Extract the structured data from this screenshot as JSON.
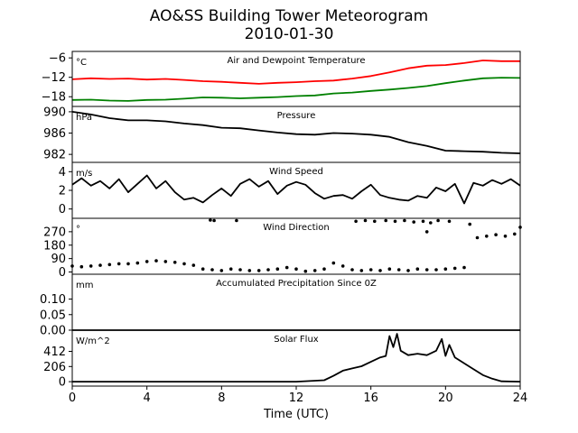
{
  "figure": {
    "title_line1": "AO&SS Building Tower Meteorogram",
    "title_line2": "2010-01-30",
    "xlabel": "Time (UTC)",
    "x_ticks": [
      0,
      4,
      8,
      12,
      16,
      20,
      24
    ],
    "x_range": [
      0,
      24
    ]
  },
  "chart_data": [
    {
      "type": "line",
      "title": "Air and Dewpoint Temperature",
      "unit": "°C",
      "ylim": [
        -21,
        -4
      ],
      "yticks": [
        {
          "v": -6,
          "label": "−6"
        },
        {
          "v": -12,
          "label": "−12"
        },
        {
          "v": -18,
          "label": "−18"
        }
      ],
      "series": [
        {
          "color": "#ff0000",
          "x": [
            0,
            1,
            2,
            3,
            4,
            5,
            6,
            7,
            8,
            9,
            10,
            11,
            12,
            13,
            14,
            15,
            16,
            17,
            18,
            19,
            20,
            21,
            22,
            23,
            24
          ],
          "values": [
            -12.6,
            -12.3,
            -12.5,
            -12.4,
            -12.7,
            -12.5,
            -12.8,
            -13.2,
            -13.4,
            -13.7,
            -14.0,
            -13.7,
            -13.5,
            -13.2,
            -13.0,
            -12.4,
            -11.6,
            -10.5,
            -9.2,
            -8.4,
            -8.2,
            -7.6,
            -6.8,
            -7.0,
            -7.0
          ]
        },
        {
          "color": "#008000",
          "x": [
            0,
            1,
            2,
            3,
            4,
            5,
            6,
            7,
            8,
            9,
            10,
            11,
            12,
            13,
            14,
            15,
            16,
            17,
            18,
            19,
            20,
            21,
            22,
            23,
            24
          ],
          "values": [
            -19.0,
            -18.9,
            -19.2,
            -19.3,
            -19.0,
            -18.9,
            -18.6,
            -18.2,
            -18.3,
            -18.5,
            -18.3,
            -18.1,
            -17.8,
            -17.6,
            -17.0,
            -16.7,
            -16.2,
            -15.8,
            -15.3,
            -14.7,
            -13.8,
            -13.0,
            -12.3,
            -12.1,
            -12.2
          ]
        }
      ]
    },
    {
      "type": "line",
      "title": "Pressure",
      "unit": "hPa",
      "ylim": [
        980.5,
        991
      ],
      "yticks": [
        {
          "v": 990,
          "label": "990"
        },
        {
          "v": 986,
          "label": "986"
        },
        {
          "v": 982,
          "label": "982"
        }
      ],
      "series": [
        {
          "color": "#000000",
          "x": [
            0,
            1,
            2,
            3,
            4,
            5,
            6,
            7,
            8,
            9,
            10,
            11,
            12,
            13,
            14,
            15,
            16,
            17,
            18,
            19,
            20,
            21,
            22,
            23,
            24
          ],
          "values": [
            990.0,
            989.5,
            988.8,
            988.4,
            988.4,
            988.2,
            987.8,
            987.5,
            987.0,
            986.9,
            986.5,
            986.1,
            985.8,
            985.7,
            986.0,
            985.9,
            985.7,
            985.3,
            984.3,
            983.6,
            982.7,
            982.6,
            982.5,
            982.3,
            982.2
          ]
        }
      ]
    },
    {
      "type": "line",
      "title": "Wind Speed",
      "unit": "m/s",
      "ylim": [
        -1,
        5
      ],
      "yticks": [
        {
          "v": 4,
          "label": "4"
        },
        {
          "v": 2,
          "label": "2"
        },
        {
          "v": 0,
          "label": "0"
        }
      ],
      "series": [
        {
          "color": "#000000",
          "x": [
            0,
            0.5,
            1,
            1.5,
            2,
            2.5,
            3,
            3.5,
            4,
            4.5,
            5,
            5.5,
            6,
            6.5,
            7,
            7.5,
            8,
            8.5,
            9,
            9.5,
            10,
            10.5,
            11,
            11.5,
            12,
            12.5,
            13,
            13.5,
            14,
            14.5,
            15,
            15.5,
            16,
            16.5,
            17,
            17.5,
            18,
            18.5,
            19,
            19.5,
            20,
            20.5,
            21,
            21.5,
            22,
            22.5,
            23,
            23.5,
            24
          ],
          "values": [
            2.6,
            3.3,
            2.5,
            3.0,
            2.2,
            3.2,
            1.8,
            2.7,
            3.6,
            2.2,
            3.0,
            1.8,
            1.0,
            1.2,
            0.7,
            1.5,
            2.2,
            1.4,
            2.7,
            3.2,
            2.4,
            3.0,
            1.6,
            2.5,
            2.9,
            2.6,
            1.7,
            1.1,
            1.4,
            1.5,
            1.1,
            1.9,
            2.6,
            1.5,
            1.2,
            1.0,
            0.9,
            1.4,
            1.2,
            2.3,
            1.9,
            2.7,
            0.6,
            2.8,
            2.5,
            3.1,
            2.7,
            3.2,
            2.5
          ]
        }
      ]
    },
    {
      "type": "scatter",
      "title": "Wind Direction",
      "unit": "°",
      "ylim": [
        -15,
        360
      ],
      "yticks": [
        {
          "v": 270,
          "label": "270"
        },
        {
          "v": 180,
          "label": "180"
        },
        {
          "v": 90,
          "label": "90"
        },
        {
          "v": 0,
          "label": "0"
        }
      ],
      "series": [
        {
          "color": "#000000",
          "x": [
            0,
            0.5,
            1,
            1.5,
            2,
            2.5,
            3,
            3.5,
            4,
            4.5,
            5,
            5.5,
            6,
            6.5,
            7,
            7.5,
            7.4,
            7.6,
            8,
            8.5,
            8.8,
            9,
            9.5,
            10,
            10.5,
            11,
            11.5,
            12,
            12.5,
            13,
            13.5,
            14,
            14.5,
            15,
            15.5,
            16,
            16.5,
            17,
            17.5,
            18,
            18.5,
            19,
            19.5,
            20,
            20.5,
            21,
            15.2,
            15.7,
            16.2,
            16.8,
            17.3,
            17.8,
            18.3,
            18.8,
            19.2,
            19.6,
            20.2,
            19.0,
            21.3,
            21.7,
            22.2,
            22.7,
            23.2,
            23.7,
            24
          ],
          "values": [
            40,
            35,
            40,
            45,
            50,
            55,
            55,
            60,
            70,
            75,
            70,
            65,
            55,
            45,
            20,
            15,
            348,
            345,
            10,
            20,
            345,
            15,
            10,
            10,
            15,
            20,
            30,
            20,
            5,
            10,
            20,
            60,
            40,
            15,
            10,
            15,
            10,
            20,
            15,
            10,
            20,
            15,
            15,
            20,
            25,
            30,
            340,
            345,
            340,
            345,
            340,
            345,
            335,
            340,
            330,
            345,
            340,
            270,
            320,
            230,
            240,
            250,
            240,
            255,
            300
          ]
        }
      ]
    },
    {
      "type": "line",
      "title": "Accumulated Precipitation Since 0Z",
      "unit": "mm",
      "ylim": [
        0,
        0.18
      ],
      "yticks": [
        {
          "v": 0.1,
          "label": "0.10"
        },
        {
          "v": 0.05,
          "label": "0.05"
        },
        {
          "v": 0.0,
          "label": "0.00"
        }
      ],
      "series": [
        {
          "color": "#000000",
          "x": [
            0,
            24
          ],
          "values": [
            0,
            0
          ]
        }
      ]
    },
    {
      "type": "line",
      "title": "Solar Flux",
      "unit": "W/m^2",
      "ylim": [
        -60,
        700
      ],
      "yticks": [
        {
          "v": 412,
          "label": "412"
        },
        {
          "v": 206,
          "label": "206"
        },
        {
          "v": 0,
          "label": "0"
        }
      ],
      "series": [
        {
          "color": "#000000",
          "x": [
            0,
            12,
            13.5,
            14,
            14.5,
            15,
            15.5,
            16,
            16.5,
            16.8,
            17,
            17.2,
            17.4,
            17.6,
            18,
            18.5,
            19,
            19.5,
            19.8,
            20,
            20.2,
            20.5,
            21,
            21.5,
            22,
            22.5,
            23,
            24
          ],
          "values": [
            0,
            0,
            20,
            80,
            150,
            180,
            210,
            270,
            330,
            350,
            620,
            470,
            650,
            420,
            360,
            380,
            360,
            420,
            580,
            350,
            500,
            330,
            250,
            170,
            90,
            40,
            5,
            0
          ]
        }
      ]
    }
  ]
}
